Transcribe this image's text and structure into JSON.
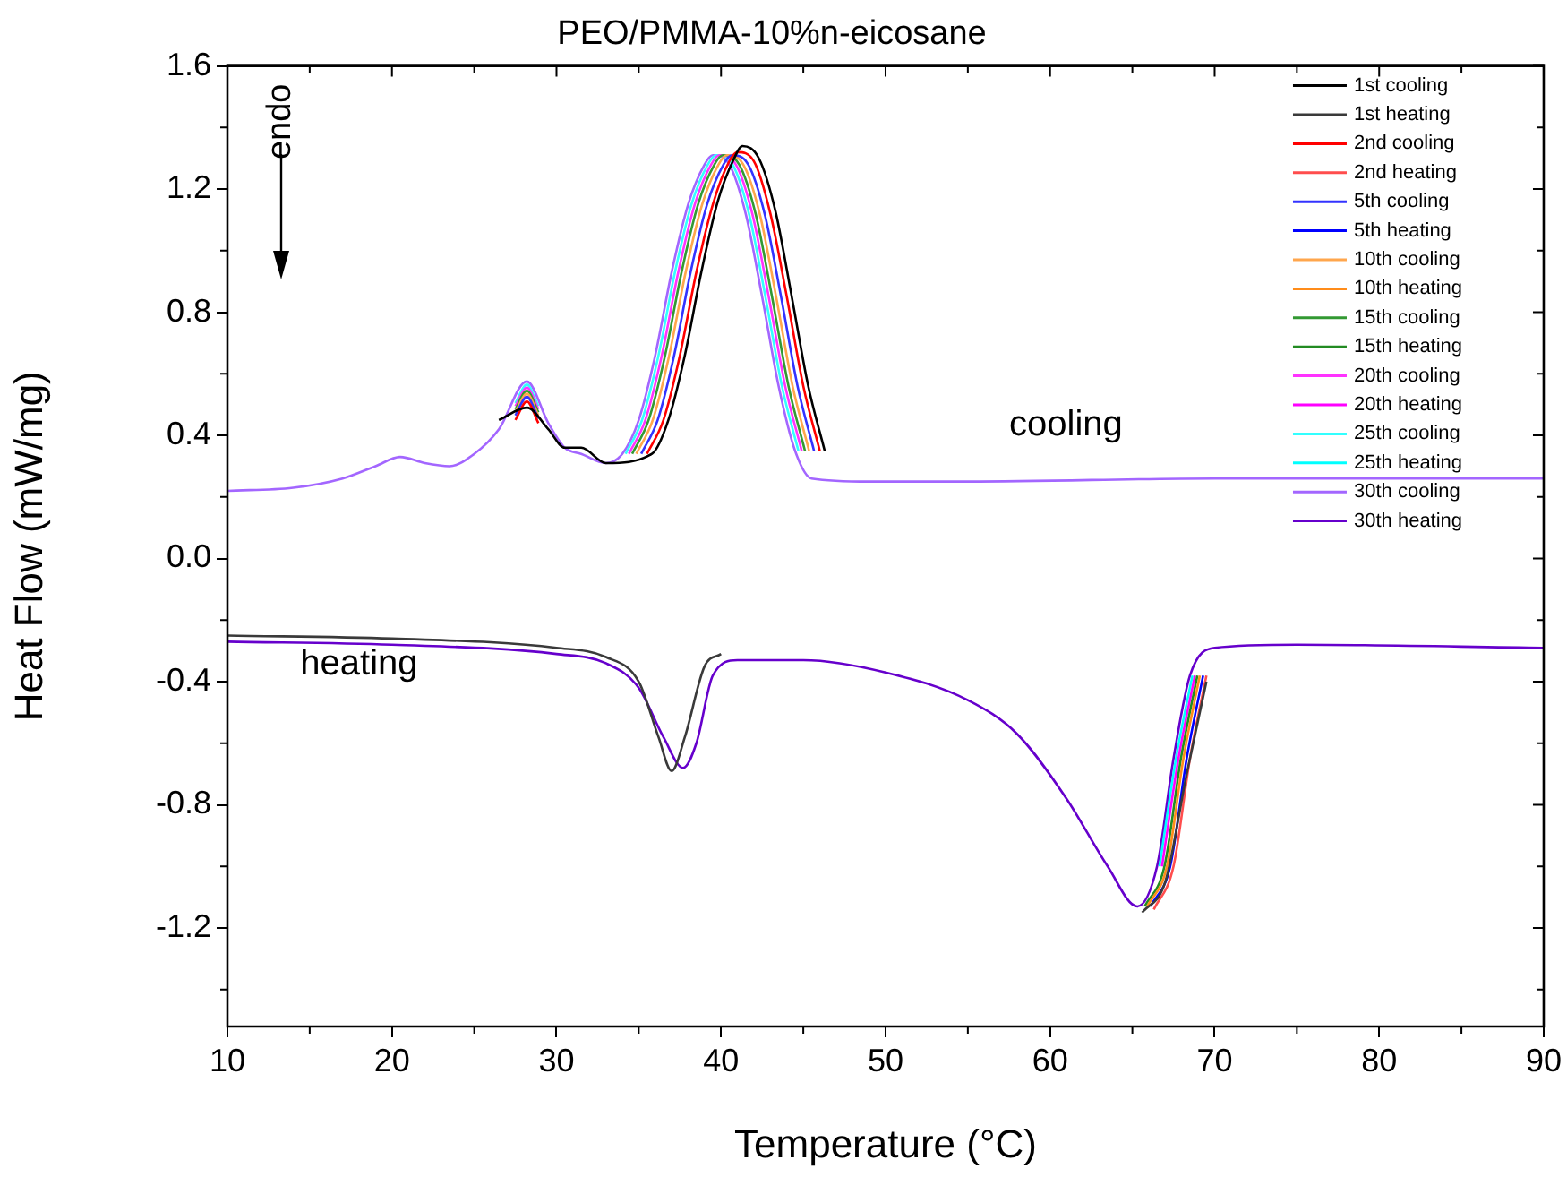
{
  "chart_data": {
    "type": "line",
    "title": "PEO/PMMA-10%n-eicosane",
    "xlabel": "Temperature (°C)",
    "ylabel": "Heat Flow (mW/mg)",
    "xlim": [
      10,
      90
    ],
    "xticks": [
      10,
      20,
      30,
      40,
      50,
      60,
      70,
      80,
      90
    ],
    "ylim": [
      -1.52,
      1.6
    ],
    "yticks": [
      -1.2,
      -0.8,
      -0.4,
      {
        "value": 0,
        "label": "0.0"
      },
      0.4,
      0.8,
      1.2,
      1.6
    ],
    "grid": false,
    "legend": "top right",
    "marker": "none",
    "line_style": "solid",
    "annotations": [
      "endo",
      "cooling",
      "heating"
    ],
    "series": [
      {
        "name": "1st cooling",
        "color": "#000000",
        "x": [
          26.5,
          28.2,
          29.5,
          30.5,
          31.5,
          33,
          35.8,
          36.8,
          37.8,
          38.8,
          39.8,
          40.8,
          41.3,
          42.3,
          43.3,
          44.3,
          45.3,
          46.3
        ],
        "values": [
          0.45,
          0.49,
          0.42,
          0.36,
          0.36,
          0.31,
          0.34,
          0.45,
          0.66,
          0.93,
          1.16,
          1.3,
          1.34,
          1.3,
          1.13,
          0.85,
          0.56,
          0.35
        ]
      },
      {
        "name": "1st heating",
        "color": "#3a3a3a",
        "x": [
          10,
          20,
          30,
          33,
          35,
          36.2,
          37,
          37.8,
          39,
          40,
          55,
          65.6,
          67,
          68.3,
          69.5
        ],
        "values": [
          -0.25,
          -0.26,
          -0.29,
          -0.32,
          -0.4,
          -0.58,
          -0.69,
          -0.58,
          -0.35,
          -0.31,
          null,
          -1.15,
          -1.05,
          -0.7,
          -0.4
        ]
      },
      {
        "name": "2nd cooling",
        "color": "#ff0000",
        "x": [
          27.5,
          28.2,
          28.9,
          31,
          35.5,
          36.5,
          37.5,
          38.5,
          39.5,
          40.5,
          41,
          42,
          43,
          44,
          45,
          46
        ],
        "values": [
          0.45,
          0.51,
          0.44,
          null,
          0.34,
          0.45,
          0.66,
          0.93,
          1.15,
          1.29,
          1.32,
          1.29,
          1.12,
          0.85,
          0.56,
          0.35
        ]
      },
      {
        "name": "2nd heating",
        "color": "#ff4d4d",
        "x": [
          66.3,
          67.5,
          68.5,
          69.5
        ],
        "values": [
          -1.14,
          -1.0,
          -0.65,
          -0.38
        ]
      },
      {
        "name": "5th cooling",
        "color": "#3333ff",
        "x": [
          27.5,
          28.2,
          28.9,
          31,
          35.15,
          36.15,
          37.15,
          38.15,
          39.15,
          40.15,
          40.65,
          41.65,
          42.65,
          43.65,
          44.65,
          45.65
        ],
        "values": [
          0.465,
          0.525,
          0.455,
          null,
          0.34,
          0.45,
          0.66,
          0.93,
          1.15,
          1.28,
          1.31,
          1.28,
          1.12,
          0.85,
          0.56,
          0.35
        ]
      },
      {
        "name": "5th heating",
        "color": "#0000ff",
        "x": [
          66.1,
          67.3,
          68.3,
          69.3
        ],
        "values": [
          -1.13,
          -1.0,
          -0.65,
          -0.38
        ]
      },
      {
        "name": "10th cooling",
        "color": "#ffa64d",
        "x": [
          27.5,
          28.2,
          28.9,
          31,
          34.85,
          35.85,
          36.85,
          37.85,
          38.85,
          39.85,
          40.35,
          41.35,
          42.35,
          43.35,
          44.35,
          45.35
        ],
        "values": [
          0.475,
          0.535,
          0.465,
          null,
          0.34,
          0.45,
          0.66,
          0.93,
          1.15,
          1.28,
          1.31,
          1.28,
          1.12,
          0.85,
          0.56,
          0.35
        ]
      },
      {
        "name": "10th heating",
        "color": "#ff8c1a",
        "x": [
          65.9,
          67.1,
          68.1,
          69.1
        ],
        "values": [
          -1.13,
          -1.0,
          -0.65,
          -0.38
        ]
      },
      {
        "name": "15th cooling",
        "color": "#339933",
        "x": [
          27.5,
          28.2,
          28.9,
          31,
          34.6,
          35.6,
          36.6,
          37.6,
          38.6,
          39.6,
          40.1,
          41.1,
          42.1,
          43.1,
          44.1,
          45.1
        ],
        "values": [
          0.485,
          0.545,
          0.475,
          null,
          0.34,
          0.45,
          0.66,
          0.93,
          1.15,
          1.28,
          1.31,
          1.28,
          1.12,
          0.85,
          0.56,
          0.35
        ]
      },
      {
        "name": "15th heating",
        "color": "#228b22",
        "x": [
          65.75,
          66.95,
          67.95,
          68.95
        ],
        "values": [
          -1.13,
          -1.0,
          -0.65,
          -0.38
        ]
      },
      {
        "name": "20th cooling",
        "color": "#ff33ff",
        "x": [
          27.5,
          28.2,
          28.9,
          31,
          34.4,
          35.4,
          36.4,
          37.4,
          38.4,
          39.4,
          39.9,
          40.9,
          41.9,
          42.9,
          43.9,
          44.9
        ],
        "values": [
          0.495,
          0.555,
          0.485,
          null,
          0.34,
          0.45,
          0.66,
          0.93,
          1.15,
          1.28,
          1.31,
          1.28,
          1.12,
          0.85,
          0.56,
          0.35
        ]
      },
      {
        "name": "20th heating",
        "color": "#ff00ff",
        "x": [
          66.8,
          67.8,
          68.8
        ],
        "values": [
          -1.0,
          -0.65,
          -0.38
        ]
      },
      {
        "name": "25th cooling",
        "color": "#33ffff",
        "x": [
          27.5,
          28.2,
          28.9,
          31,
          34.2,
          35.2,
          36.2,
          37.2,
          38.2,
          39.2,
          39.7,
          40.7,
          41.7,
          42.7,
          43.7,
          44.7
        ],
        "values": [
          0.505,
          0.565,
          0.495,
          null,
          0.34,
          0.45,
          0.66,
          0.93,
          1.15,
          1.28,
          1.31,
          1.28,
          1.12,
          0.85,
          0.56,
          0.35
        ]
      },
      {
        "name": "25th heating",
        "color": "#00ffff",
        "x": [
          66.65,
          67.65,
          68.65
        ],
        "values": [
          -1.0,
          -0.65,
          -0.38
        ]
      },
      {
        "name": "30th cooling",
        "color": "#a366ff",
        "x": [
          10,
          14,
          17,
          19,
          20.5,
          22,
          23.5,
          25,
          26.5,
          28.2,
          29.5,
          30.5,
          31.5,
          33,
          34,
          35,
          36,
          37,
          38,
          39,
          39.5,
          40.5,
          41.5,
          42.5,
          43.5,
          44.5,
          45.5,
          49,
          55,
          70,
          90
        ],
        "values": [
          0.22,
          0.23,
          0.26,
          0.3,
          0.33,
          0.31,
          0.3,
          0.34,
          0.42,
          0.575,
          0.44,
          0.36,
          0.34,
          0.31,
          0.34,
          0.45,
          0.66,
          0.93,
          1.15,
          1.28,
          1.31,
          1.28,
          1.12,
          0.85,
          0.56,
          0.35,
          0.26,
          0.25,
          0.25,
          0.26,
          0.26
        ]
      },
      {
        "name": "30th heating",
        "color": "#6600cc",
        "x": [
          10,
          20,
          30,
          33,
          35,
          36.5,
          37.7,
          38.5,
          39.5,
          41,
          45,
          50,
          55,
          58,
          61,
          63.5,
          65.3,
          66.5,
          67.5,
          68.5,
          70,
          75,
          90
        ],
        "values": [
          -0.27,
          -0.28,
          -0.31,
          -0.34,
          -0.42,
          -0.58,
          -0.68,
          -0.6,
          -0.38,
          -0.33,
          -0.33,
          -0.37,
          -0.46,
          -0.57,
          -0.78,
          -1.0,
          -1.13,
          -1.0,
          -0.65,
          -0.38,
          -0.29,
          -0.28,
          -0.29
        ]
      }
    ]
  }
}
